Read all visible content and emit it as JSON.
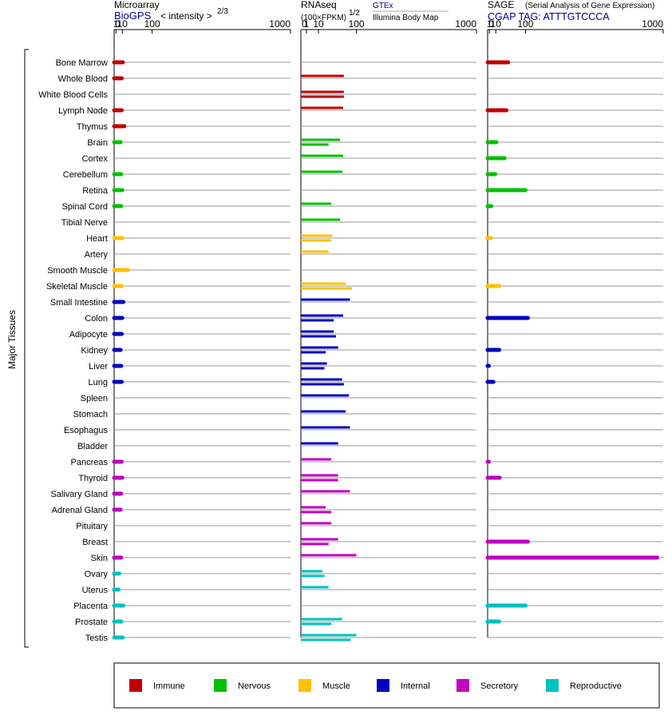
{
  "chart_data": {
    "type": "bar",
    "ylabel": "Major Tissues",
    "scale": "cube-root / square-root transformed expression",
    "panels": [
      {
        "id": "microarray",
        "title": "Microarray",
        "source": "BioGPS",
        "unit": "< intensity >",
        "unit_exp": "2/3",
        "ticks": [
          "0",
          "1",
          "10",
          "100",
          "1000"
        ],
        "xlim": [
          0,
          1000
        ]
      },
      {
        "id": "rnaseq",
        "title": "RNAseq",
        "unit": "(100×FPKM)",
        "unit_exp": "1/2",
        "source1": "GTEx",
        "source2": "Illumina Body Map",
        "ticks": [
          "0",
          "1",
          "10",
          "100",
          "1000"
        ],
        "xlim": [
          0,
          1000
        ]
      },
      {
        "id": "sage",
        "title": "SAGE",
        "subtitle": "(Serial Analysis of Gene Expression)",
        "tag": "CGAP TAG: ATTTGTCCCA",
        "ticks": [
          "0",
          "1",
          "10",
          "100",
          "1000"
        ],
        "xlim": [
          0,
          1000
        ]
      }
    ],
    "groups": [
      {
        "name": "Immune",
        "color": "#c00000"
      },
      {
        "name": "Nervous",
        "color": "#00c000"
      },
      {
        "name": "Muscle",
        "color": "#ffc000"
      },
      {
        "name": "Internal",
        "color": "#0000c0"
      },
      {
        "name": "Secretory",
        "color": "#c000c0"
      },
      {
        "name": "Reproductive",
        "color": "#00c0c0"
      }
    ],
    "tissues": [
      {
        "name": "Bone Marrow",
        "group": 0,
        "micro": 11,
        "rna": [],
        "sage": 40
      },
      {
        "name": "Whole Blood",
        "group": 0,
        "micro": 9,
        "rna": [
          60
        ],
        "sage": null
      },
      {
        "name": "White Blood Cells",
        "group": 0,
        "micro": null,
        "rna": [
          60,
          60
        ],
        "sage": null
      },
      {
        "name": "Lymph Node",
        "group": 0,
        "micro": 9,
        "rna": [
          58
        ],
        "sage": 35
      },
      {
        "name": "Thymus",
        "group": 0,
        "micro": 14,
        "rna": [],
        "sage": null
      },
      {
        "name": "Brain",
        "group": 1,
        "micro": 7,
        "rna": [
          50,
          25
        ],
        "sage": 11
      },
      {
        "name": "Cortex",
        "group": 1,
        "micro": null,
        "rna": [
          58
        ],
        "sage": 30
      },
      {
        "name": "Cerebellum",
        "group": 1,
        "micro": 8,
        "rna": [
          56
        ],
        "sage": 9
      },
      {
        "name": "Retina",
        "group": 1,
        "micro": 10,
        "rna": [],
        "sage": 100
      },
      {
        "name": "Spinal Cord",
        "group": 1,
        "micro": 8,
        "rna": [
          30
        ],
        "sage": 3
      },
      {
        "name": "Tibial Nerve",
        "group": 1,
        "micro": null,
        "rna": [
          50
        ],
        "sage": null
      },
      {
        "name": "Heart",
        "group": 2,
        "micro": 10,
        "rna": [
          32,
          30
        ],
        "sage": 2.5
      },
      {
        "name": "Artery",
        "group": 2,
        "micro": null,
        "rna": [
          25
        ],
        "sage": null
      },
      {
        "name": "Smooth Muscle",
        "group": 2,
        "micro": 22,
        "rna": [],
        "sage": null
      },
      {
        "name": "Skeletal Muscle",
        "group": 2,
        "micro": 9,
        "rna": [
          65,
          85
        ],
        "sage": 17
      },
      {
        "name": "Small Intestine",
        "group": 3,
        "micro": 12,
        "rna": [
          78
        ],
        "sage": null
      },
      {
        "name": "Colon",
        "group": 3,
        "micro": 10,
        "rna": [
          58,
          35
        ],
        "sage": 110
      },
      {
        "name": "Adipocyte",
        "group": 3,
        "micro": 9,
        "rna": [
          35,
          40
        ],
        "sage": null
      },
      {
        "name": "Kidney",
        "group": 3,
        "micro": 7,
        "rna": [
          45,
          20
        ],
        "sage": 17
      },
      {
        "name": "Liver",
        "group": 3,
        "micro": 8,
        "rna": [
          22,
          18
        ],
        "sage": 0.02
      },
      {
        "name": "Lung",
        "group": 3,
        "micro": 9,
        "rna": [
          55,
          60
        ],
        "sage": 6
      },
      {
        "name": "Spleen",
        "group": 3,
        "micro": null,
        "rna": [
          75
        ],
        "sage": null
      },
      {
        "name": "Stomach",
        "group": 3,
        "micro": null,
        "rna": [
          65
        ],
        "sage": null
      },
      {
        "name": "Esophagus",
        "group": 3,
        "micro": null,
        "rna": [
          78
        ],
        "sage": null
      },
      {
        "name": "Bladder",
        "group": 3,
        "micro": null,
        "rna": [
          45
        ],
        "sage": null
      },
      {
        "name": "Pancreas",
        "group": 4,
        "micro": 9,
        "rna": [
          30
        ],
        "sage": 0.02
      },
      {
        "name": "Thyroid",
        "group": 4,
        "micro": 10,
        "rna": [
          45,
          45
        ],
        "sage": 18
      },
      {
        "name": "Salivary Gland",
        "group": 4,
        "micro": 8,
        "rna": [
          78
        ],
        "sage": null
      },
      {
        "name": "Adrenal Gland",
        "group": 4,
        "micro": 7,
        "rna": [
          20,
          30
        ],
        "sage": null
      },
      {
        "name": "Pituitary",
        "group": 4,
        "micro": null,
        "rna": [
          30
        ],
        "sage": null
      },
      {
        "name": "Breast",
        "group": 4,
        "micro": null,
        "rna": [
          45,
          25
        ],
        "sage": 110
      },
      {
        "name": "Skin",
        "group": 4,
        "micro": 8,
        "rna": [
          100
        ],
        "sage": 950
      },
      {
        "name": "Ovary",
        "group": 5,
        "micro": 5,
        "rna": [
          15,
          18
        ],
        "sage": null
      },
      {
        "name": "Uterus",
        "group": 5,
        "micro": 4,
        "rna": [
          25
        ],
        "sage": null
      },
      {
        "name": "Placenta",
        "group": 5,
        "micro": 12,
        "rna": [],
        "sage": 100
      },
      {
        "name": "Prostate",
        "group": 5,
        "micro": 8,
        "rna": [
          55,
          30
        ],
        "sage": 17
      },
      {
        "name": "Testis",
        "group": 5,
        "micro": 11,
        "rna": [
          100,
          80
        ],
        "sage": null
      }
    ]
  }
}
